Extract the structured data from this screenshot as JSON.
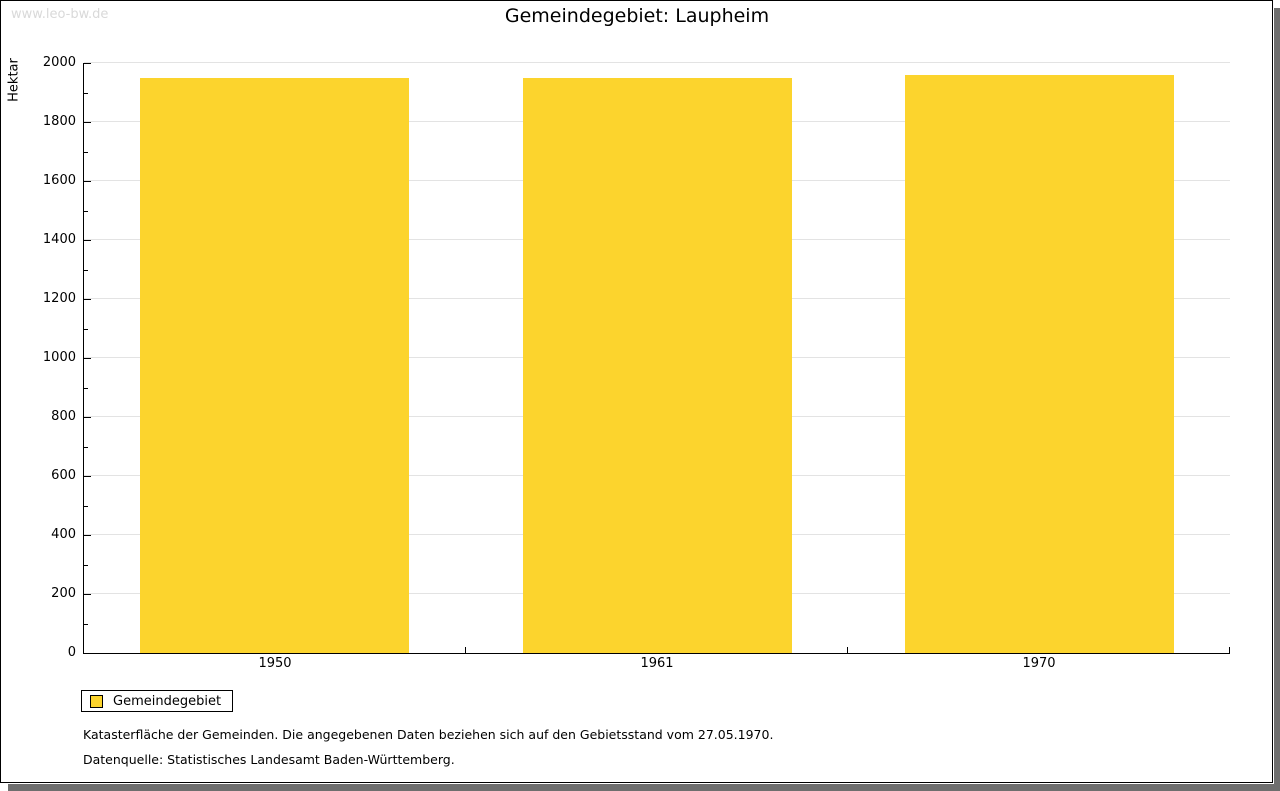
{
  "watermark": "www.leo-bw.de",
  "title": "Gemeindegebiet: Laupheim",
  "chart_data": {
    "type": "bar",
    "title": "Gemeindegebiet: Laupheim",
    "categories": [
      "1950",
      "1961",
      "1970"
    ],
    "series": [
      {
        "name": "Gemeindegebiet",
        "values": [
          1948,
          1948,
          1959
        ]
      }
    ],
    "xlabel": "",
    "ylabel": "Hektar",
    "ylim": [
      0,
      2000
    ],
    "ytick_step": 200,
    "yminor_step": 100,
    "grid": true,
    "bar_color": "#FCD42D",
    "legend_position": "bottom-left"
  },
  "legend": {
    "items": [
      {
        "label": "Gemeindegebiet",
        "color": "#FCD42D"
      }
    ]
  },
  "footnotes": {
    "line1": "Katasterfläche der Gemeinden. Die angegebenen Daten beziehen sich auf den Gebietsstand vom 27.05.1970.",
    "line2": "Datenquelle: Statistisches Landesamt Baden-Württemberg."
  },
  "colors": {
    "bar": "#FCD42D",
    "gridline": "#e3e3e3",
    "axis": "#000000",
    "watermark": "#d9d9d9",
    "shadow": "#6e6e6e",
    "background": "#ffffff"
  }
}
